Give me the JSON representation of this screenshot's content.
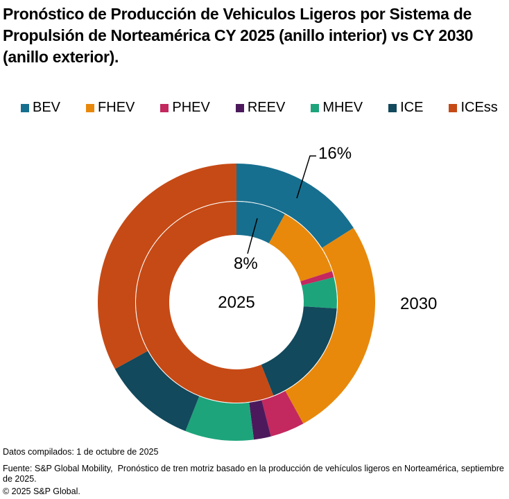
{
  "title": "Pronóstico de Producción de Vehiculos Ligeros por Sistema de Propulsión de Norteamérica CY 2025 (anillo interior) vs CY 2030 (anillo exterior).",
  "chart_data": {
    "type": "pie",
    "subtype": "nested-donut",
    "categories": [
      "BEV",
      "FHEV",
      "PHEV",
      "REEV",
      "MHEV",
      "ICE",
      "ICEss"
    ],
    "colors": [
      "#176f8f",
      "#e8890c",
      "#c3285f",
      "#4c1a5c",
      "#1ea47b",
      "#12495c",
      "#c64a15"
    ],
    "series": [
      {
        "name": "2025",
        "ring": "inner",
        "values": [
          8,
          12,
          1,
          0,
          5,
          18,
          56
        ]
      },
      {
        "name": "2030",
        "ring": "outer",
        "values": [
          16,
          26,
          4,
          2,
          8,
          11,
          33
        ]
      }
    ],
    "units": "%",
    "legend_position": "top",
    "annotations": [
      {
        "text": "16%",
        "target": "outer ring BEV slice"
      },
      {
        "text": "8%",
        "target": "inner ring BEV slice"
      }
    ]
  },
  "footer": {
    "compiled": "Datos compilados: 1 de octubre de 2025",
    "source": "Fuente: S&P Global Mobility,  Pronóstico de tren motriz basado en la producción de vehículos ligeros en Norteamérica, septiembre de 2025.",
    "copyright": "© 2025 S&P Global."
  }
}
